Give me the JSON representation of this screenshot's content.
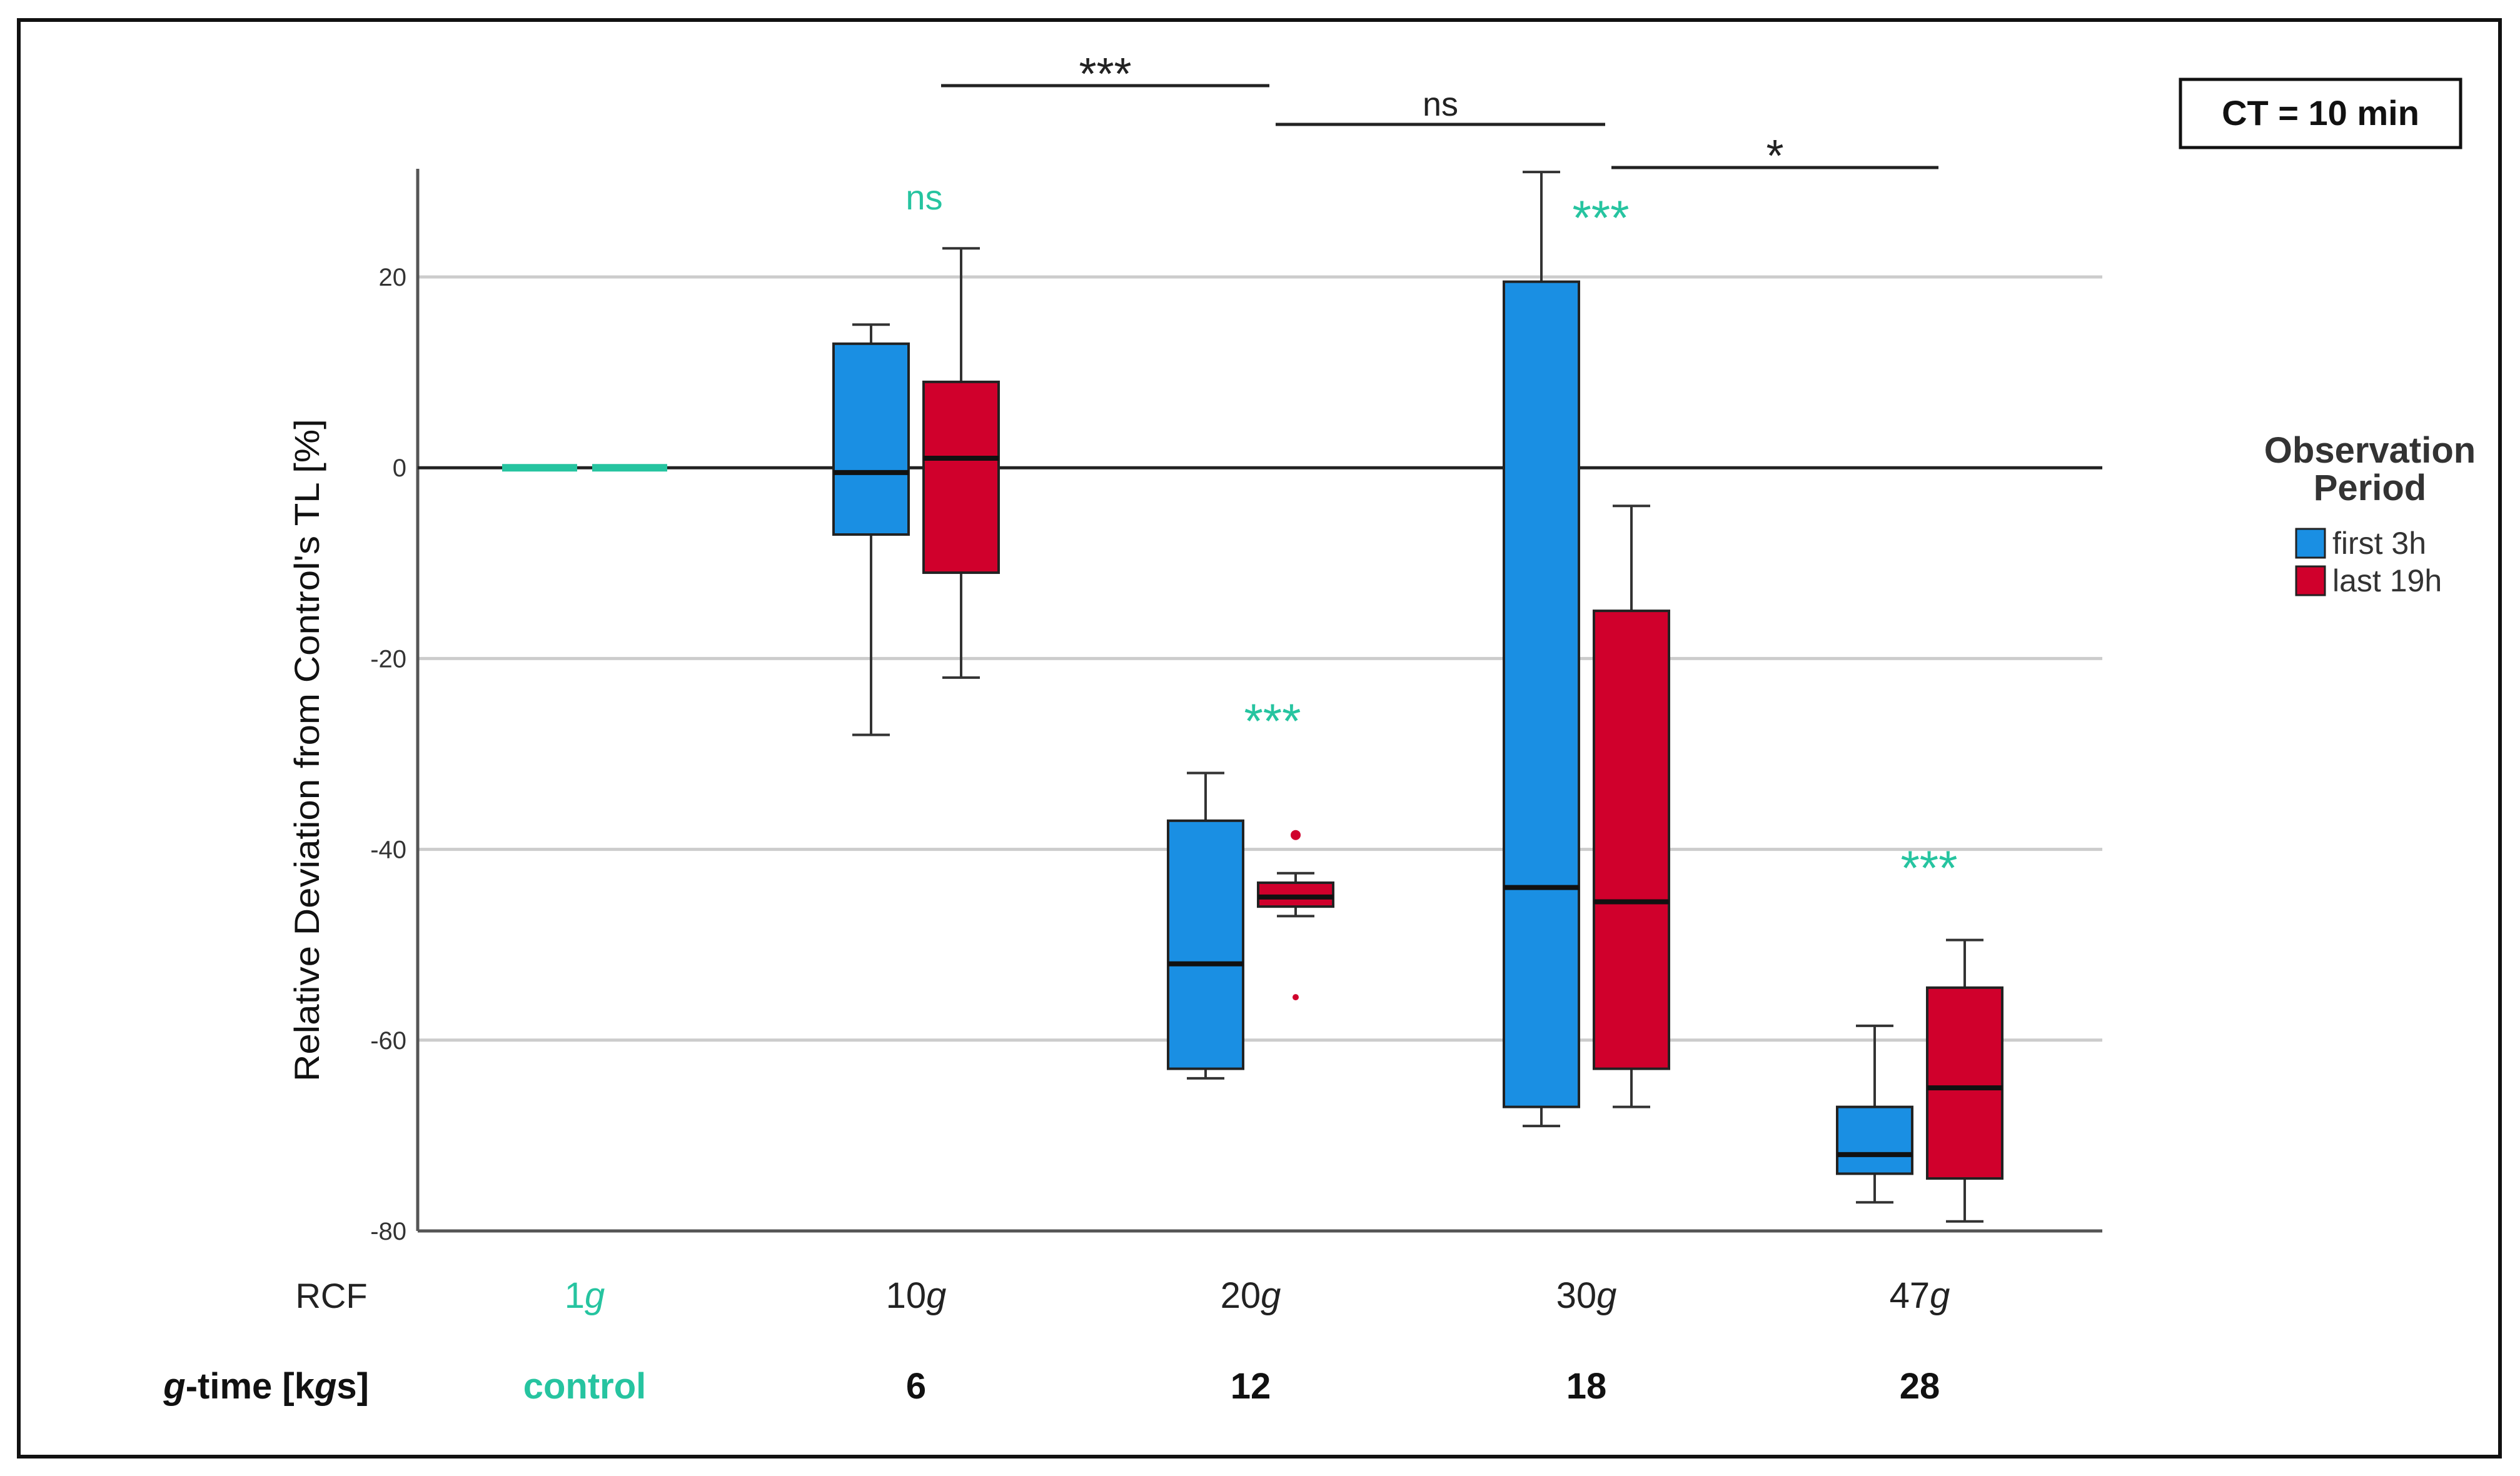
{
  "chart_data": {
    "type": "boxplot",
    "ylabel": "Relative Deviation from Control's TL [%]",
    "ylim": [
      -80,
      30
    ],
    "yticks": [
      20,
      0,
      -20,
      -40,
      -60,
      -80
    ],
    "grid": true,
    "ct_label": "CT = 10 min",
    "row_labels": {
      "rcf": "RCF",
      "gtime_g": "g",
      "gtime_rest": "-time [k",
      "gtime_g2": "g",
      "gtime_end": "s]"
    },
    "groups": [
      {
        "rcf_num": "1",
        "rcf_unit": "g",
        "gtime": "control",
        "is_control": true
      },
      {
        "rcf_num": "10",
        "rcf_unit": "g",
        "gtime": "6",
        "is_control": false
      },
      {
        "rcf_num": "20",
        "rcf_unit": "g",
        "gtime": "12",
        "is_control": false
      },
      {
        "rcf_num": "30",
        "rcf_unit": "g",
        "gtime": "18",
        "is_control": false
      },
      {
        "rcf_num": "47",
        "rcf_unit": "g",
        "gtime": "28",
        "is_control": false
      }
    ],
    "legend": {
      "title_line1": "Observation",
      "title_line2": "Period",
      "position": "right",
      "entries": [
        {
          "label": "first 3h",
          "color": "#1a8fe3"
        },
        {
          "label": "last 19h",
          "color": "#d0002c"
        }
      ]
    },
    "series": [
      {
        "name": "first 3h",
        "color": "#1a8fe3",
        "boxes": [
          {
            "group": 0,
            "control": true,
            "value": 0
          },
          {
            "group": 1,
            "whisker_low": -28,
            "q1": -7,
            "median": -0.5,
            "q3": 13,
            "whisker_high": 15,
            "outliers": []
          },
          {
            "group": 2,
            "whisker_low": -64,
            "q1": -63,
            "median": -52,
            "q3": -37,
            "whisker_high": -32,
            "outliers": []
          },
          {
            "group": 3,
            "whisker_low": -69,
            "q1": -67,
            "median": -44,
            "q3": 19.5,
            "whisker_high": 31,
            "outliers": []
          },
          {
            "group": 4,
            "whisker_low": -77,
            "q1": -74,
            "median": -72,
            "q3": -67,
            "whisker_high": -58.5,
            "outliers": []
          }
        ]
      },
      {
        "name": "last 19h",
        "color": "#d0002c",
        "boxes": [
          {
            "group": 0,
            "control": true,
            "value": 0
          },
          {
            "group": 1,
            "whisker_low": -22,
            "q1": -11,
            "median": 1,
            "q3": 9,
            "whisker_high": 23,
            "outliers": []
          },
          {
            "group": 2,
            "whisker_low": -47,
            "q1": -46,
            "median": -45,
            "q3": -43.5,
            "whisker_high": -42.5,
            "outliers": [
              -38.5,
              -55.5
            ]
          },
          {
            "group": 3,
            "whisker_low": -67,
            "q1": -63,
            "median": -45.5,
            "q3": -15,
            "whisker_high": -4,
            "outliers": []
          },
          {
            "group": 4,
            "whisker_low": -79,
            "q1": -74.5,
            "median": -65,
            "q3": -54.5,
            "whisker_high": -49.5,
            "outliers": []
          }
        ]
      }
    ],
    "group_significance": [
      {
        "group": 1,
        "text": "ns"
      },
      {
        "group": 2,
        "text": "***"
      },
      {
        "group": 3,
        "text": "***"
      },
      {
        "group": 4,
        "text": "***"
      }
    ],
    "pairwise_significance": [
      {
        "from": 1,
        "to": 2,
        "text": "***"
      },
      {
        "from": 2,
        "to": 3,
        "text": "ns"
      },
      {
        "from": 3,
        "to": 4,
        "text": "*"
      }
    ],
    "colors": {
      "significance_group": "#26c4a0",
      "axis": "#555555",
      "grid": "#cccccc"
    }
  }
}
